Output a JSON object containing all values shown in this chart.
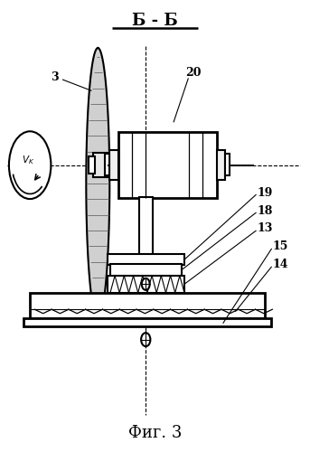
{
  "title_section": "Б - Б",
  "caption": "Фиг. 3",
  "bg_color": "#ffffff",
  "line_color": "#000000",
  "label_fs": 9,
  "lw": 1.5,
  "lw2": 2.0
}
